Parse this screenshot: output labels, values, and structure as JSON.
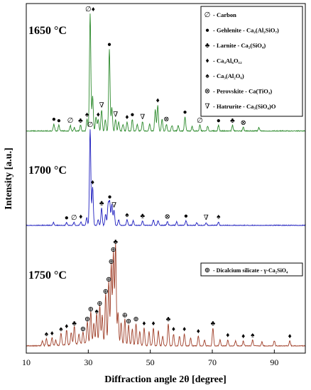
{
  "chart_data": {
    "type": "line",
    "xlabel": "Diffraction angle 2θ [degree]",
    "ylabel": "Intensity [a.u.]",
    "xlim": [
      10,
      100
    ],
    "x_ticks": [
      10,
      30,
      50,
      70,
      90
    ],
    "grid": false,
    "series": [
      {
        "name": "1650 °C",
        "color": "#2e8b2e",
        "baseline": 0,
        "peaks": [
          {
            "x": 18.9,
            "h": 0.06
          },
          {
            "x": 20.5,
            "h": 0.05
          },
          {
            "x": 24.2,
            "h": 0.05
          },
          {
            "x": 25.5,
            "h": 0.03
          },
          {
            "x": 27.5,
            "h": 0.05
          },
          {
            "x": 29.6,
            "h": 0.1
          },
          {
            "x": 30.6,
            "h": 1.0
          },
          {
            "x": 31.4,
            "h": 0.3
          },
          {
            "x": 32.5,
            "h": 0.12
          },
          {
            "x": 33.2,
            "h": 0.1
          },
          {
            "x": 34.3,
            "h": 0.18
          },
          {
            "x": 35.5,
            "h": 0.1
          },
          {
            "x": 36.8,
            "h": 0.7
          },
          {
            "x": 37.6,
            "h": 0.2
          },
          {
            "x": 38.8,
            "h": 0.1
          },
          {
            "x": 39.8,
            "h": 0.08
          },
          {
            "x": 41.2,
            "h": 0.06
          },
          {
            "x": 42.5,
            "h": 0.08
          },
          {
            "x": 44.2,
            "h": 0.1
          },
          {
            "x": 45.8,
            "h": 0.06
          },
          {
            "x": 47.5,
            "h": 0.08
          },
          {
            "x": 49.8,
            "h": 0.06
          },
          {
            "x": 51.6,
            "h": 0.18
          },
          {
            "x": 52.4,
            "h": 0.22
          },
          {
            "x": 53.8,
            "h": 0.1
          },
          {
            "x": 55.2,
            "h": 0.06
          },
          {
            "x": 57.0,
            "h": 0.05
          },
          {
            "x": 59.0,
            "h": 0.05
          },
          {
            "x": 61.2,
            "h": 0.12
          },
          {
            "x": 63.5,
            "h": 0.04
          },
          {
            "x": 66.0,
            "h": 0.05
          },
          {
            "x": 68.5,
            "h": 0.04
          },
          {
            "x": 72.0,
            "h": 0.05
          },
          {
            "x": 76.5,
            "h": 0.05
          },
          {
            "x": 80.0,
            "h": 0.03
          },
          {
            "x": 85.0,
            "h": 0.03
          }
        ]
      },
      {
        "name": "1700 °C",
        "color": "#1f1fbf",
        "baseline": 0,
        "peaks": [
          {
            "x": 18.8,
            "h": 0.03
          },
          {
            "x": 23.0,
            "h": 0.03
          },
          {
            "x": 25.4,
            "h": 0.03
          },
          {
            "x": 27.6,
            "h": 0.04
          },
          {
            "x": 29.5,
            "h": 0.08
          },
          {
            "x": 30.6,
            "h": 1.0
          },
          {
            "x": 31.4,
            "h": 0.4
          },
          {
            "x": 33.2,
            "h": 0.06
          },
          {
            "x": 34.3,
            "h": 0.18
          },
          {
            "x": 35.6,
            "h": 0.12
          },
          {
            "x": 36.4,
            "h": 0.22
          },
          {
            "x": 36.9,
            "h": 0.25
          },
          {
            "x": 37.6,
            "h": 0.22
          },
          {
            "x": 38.3,
            "h": 0.16
          },
          {
            "x": 39.8,
            "h": 0.06
          },
          {
            "x": 42.5,
            "h": 0.06
          },
          {
            "x": 44.5,
            "h": 0.05
          },
          {
            "x": 47.5,
            "h": 0.05
          },
          {
            "x": 51.0,
            "h": 0.06
          },
          {
            "x": 52.5,
            "h": 0.05
          },
          {
            "x": 55.5,
            "h": 0.04
          },
          {
            "x": 58.5,
            "h": 0.04
          },
          {
            "x": 61.5,
            "h": 0.05
          },
          {
            "x": 65.0,
            "h": 0.03
          },
          {
            "x": 68.0,
            "h": 0.03
          },
          {
            "x": 72.0,
            "h": 0.04
          }
        ]
      },
      {
        "name": "1750 °C",
        "color": "#a0402a",
        "baseline": 0,
        "peaks": [
          {
            "x": 15.2,
            "h": 0.05
          },
          {
            "x": 16.5,
            "h": 0.07
          },
          {
            "x": 18.3,
            "h": 0.08
          },
          {
            "x": 19.5,
            "h": 0.05
          },
          {
            "x": 21.2,
            "h": 0.12
          },
          {
            "x": 23.0,
            "h": 0.15
          },
          {
            "x": 24.5,
            "h": 0.12
          },
          {
            "x": 25.5,
            "h": 0.18
          },
          {
            "x": 27.0,
            "h": 0.1
          },
          {
            "x": 28.3,
            "h": 0.12
          },
          {
            "x": 29.7,
            "h": 0.22
          },
          {
            "x": 30.8,
            "h": 0.32
          },
          {
            "x": 31.8,
            "h": 0.2
          },
          {
            "x": 32.7,
            "h": 0.3
          },
          {
            "x": 33.7,
            "h": 0.38
          },
          {
            "x": 34.5,
            "h": 0.28
          },
          {
            "x": 35.6,
            "h": 0.5
          },
          {
            "x": 36.6,
            "h": 0.62
          },
          {
            "x": 37.4,
            "h": 0.8
          },
          {
            "x": 38.1,
            "h": 0.92
          },
          {
            "x": 38.8,
            "h": 1.0
          },
          {
            "x": 39.6,
            "h": 0.32
          },
          {
            "x": 40.6,
            "h": 0.22
          },
          {
            "x": 41.8,
            "h": 0.26
          },
          {
            "x": 43.0,
            "h": 0.2
          },
          {
            "x": 44.2,
            "h": 0.16
          },
          {
            "x": 45.4,
            "h": 0.22
          },
          {
            "x": 46.6,
            "h": 0.14
          },
          {
            "x": 48.0,
            "h": 0.18
          },
          {
            "x": 49.6,
            "h": 0.14
          },
          {
            "x": 51.0,
            "h": 0.18
          },
          {
            "x": 52.6,
            "h": 0.15
          },
          {
            "x": 54.0,
            "h": 0.1
          },
          {
            "x": 55.8,
            "h": 0.22
          },
          {
            "x": 57.5,
            "h": 0.12
          },
          {
            "x": 59.4,
            "h": 0.1
          },
          {
            "x": 61.0,
            "h": 0.12
          },
          {
            "x": 63.0,
            "h": 0.08
          },
          {
            "x": 65.5,
            "h": 0.1
          },
          {
            "x": 67.5,
            "h": 0.06
          },
          {
            "x": 70.2,
            "h": 0.18
          },
          {
            "x": 72.5,
            "h": 0.06
          },
          {
            "x": 75.0,
            "h": 0.06
          },
          {
            "x": 77.5,
            "h": 0.05
          },
          {
            "x": 80.0,
            "h": 0.05
          },
          {
            "x": 83.0,
            "h": 0.06
          },
          {
            "x": 86.0,
            "h": 0.04
          },
          {
            "x": 90.0,
            "h": 0.05
          },
          {
            "x": 95.0,
            "h": 0.05
          }
        ]
      }
    ],
    "legend_top": {
      "placement": "top-right",
      "entries": [
        {
          "symbol": "∅",
          "label": "- Carbon"
        },
        {
          "symbol": "●",
          "label": "- Gehlenite - Ca₂(Al₂SiO₇)"
        },
        {
          "symbol": "♣",
          "label": "- Larnite - Ca₂(SiO₄)"
        },
        {
          "symbol": "♦",
          "label": "- Ca₃Al₆O₁₂"
        },
        {
          "symbol": "♠",
          "label": "- Ca₃(Al₂O₆)"
        },
        {
          "symbol": "⊗",
          "label": "- Perovskite - Ca(TiO₃)"
        },
        {
          "symbol": "∇",
          "label": "- Hatrurite - Ca₃(SiO₄)O"
        }
      ]
    },
    "legend_bottom": {
      "placement": "right",
      "entries": [
        {
          "symbol": "⊕",
          "label": "- Dicalcium silicate - γ-Ca₂SiO₄"
        }
      ]
    },
    "markers": [
      {
        "panel": 0,
        "x": 30.6,
        "symbol": "∅♦",
        "h": 1.0
      },
      {
        "panel": 0,
        "x": 36.8,
        "symbol": "●",
        "h": 0.7
      },
      {
        "panel": 0,
        "x": 34.3,
        "symbol": "∇",
        "h": 0.18
      },
      {
        "panel": 0,
        "x": 18.9,
        "symbol": "●",
        "h": 0.06
      },
      {
        "panel": 0,
        "x": 20.5,
        "symbol": "●",
        "h": 0.05
      },
      {
        "panel": 0,
        "x": 24.2,
        "symbol": "∅",
        "h": 0.05
      },
      {
        "panel": 0,
        "x": 27.5,
        "symbol": "♣",
        "h": 0.05
      },
      {
        "panel": 0,
        "x": 29.6,
        "symbol": "♠",
        "h": 0.1
      },
      {
        "panel": 0,
        "x": 33.2,
        "symbol": "♦",
        "h": 0.1
      },
      {
        "panel": 0,
        "x": 38.8,
        "symbol": "∇",
        "h": 0.1
      },
      {
        "panel": 0,
        "x": 42.5,
        "symbol": "♦",
        "h": 0.08
      },
      {
        "panel": 0,
        "x": 44.2,
        "symbol": "●",
        "h": 0.1
      },
      {
        "panel": 0,
        "x": 47.5,
        "symbol": "∇",
        "h": 0.08
      },
      {
        "panel": 0,
        "x": 52.4,
        "symbol": "♦",
        "h": 0.22
      },
      {
        "panel": 0,
        "x": 55.2,
        "symbol": "⊗",
        "h": 0.06
      },
      {
        "panel": 0,
        "x": 61.2,
        "symbol": "●",
        "h": 0.12
      },
      {
        "panel": 0,
        "x": 66.0,
        "symbol": "∅",
        "h": 0.05
      },
      {
        "panel": 0,
        "x": 72.0,
        "symbol": "●",
        "h": 0.05
      },
      {
        "panel": 0,
        "x": 76.5,
        "symbol": "♣",
        "h": 0.05
      },
      {
        "panel": 0,
        "x": 80.0,
        "symbol": "⊗",
        "h": 0.03
      },
      {
        "panel": 1,
        "x": 30.6,
        "symbol": "∅",
        "h": 1.0
      },
      {
        "panel": 1,
        "x": 31.4,
        "symbol": "♦",
        "h": 0.4
      },
      {
        "panel": 1,
        "x": 36.9,
        "symbol": "●",
        "h": 0.25
      },
      {
        "panel": 1,
        "x": 34.3,
        "symbol": "♣",
        "h": 0.18
      },
      {
        "panel": 1,
        "x": 38.3,
        "symbol": "∇",
        "h": 0.16
      },
      {
        "panel": 1,
        "x": 23.0,
        "symbol": "●",
        "h": 0.03
      },
      {
        "panel": 1,
        "x": 25.4,
        "symbol": "∅",
        "h": 0.03
      },
      {
        "panel": 1,
        "x": 27.6,
        "symbol": "♦",
        "h": 0.04
      },
      {
        "panel": 1,
        "x": 42.5,
        "symbol": "♠",
        "h": 0.06
      },
      {
        "panel": 1,
        "x": 47.5,
        "symbol": "♣",
        "h": 0.05
      },
      {
        "panel": 1,
        "x": 55.5,
        "symbol": "⊗",
        "h": 0.04
      },
      {
        "panel": 1,
        "x": 61.5,
        "symbol": "●",
        "h": 0.05
      },
      {
        "panel": 1,
        "x": 68.0,
        "symbol": "∇",
        "h": 0.03
      },
      {
        "panel": 1,
        "x": 72.0,
        "symbol": "♠",
        "h": 0.04
      },
      {
        "panel": 2,
        "x": 38.8,
        "symbol": "♣",
        "h": 1.0
      },
      {
        "panel": 2,
        "x": 38.1,
        "symbol": "⊕",
        "h": 0.92
      },
      {
        "panel": 2,
        "x": 37.4,
        "symbol": "⊕",
        "h": 0.8
      },
      {
        "panel": 2,
        "x": 36.6,
        "symbol": "⊕",
        "h": 0.62
      },
      {
        "panel": 2,
        "x": 35.6,
        "symbol": "⊕",
        "h": 0.5
      },
      {
        "panel": 2,
        "x": 33.7,
        "symbol": "⊕",
        "h": 0.38
      },
      {
        "panel": 2,
        "x": 30.8,
        "symbol": "⊕",
        "h": 0.32
      },
      {
        "panel": 2,
        "x": 32.7,
        "symbol": "♠",
        "h": 0.3
      },
      {
        "panel": 2,
        "x": 29.7,
        "symbol": "⊕",
        "h": 0.22
      },
      {
        "panel": 2,
        "x": 41.8,
        "symbol": "⊕",
        "h": 0.26
      },
      {
        "panel": 2,
        "x": 43.0,
        "symbol": "⊕",
        "h": 0.2
      },
      {
        "panel": 2,
        "x": 45.4,
        "symbol": "⊕",
        "h": 0.22
      },
      {
        "panel": 2,
        "x": 48.0,
        "symbol": "♦",
        "h": 0.18
      },
      {
        "panel": 2,
        "x": 51.0,
        "symbol": "♦",
        "h": 0.18
      },
      {
        "panel": 2,
        "x": 55.8,
        "symbol": "♣",
        "h": 0.22
      },
      {
        "panel": 2,
        "x": 57.5,
        "symbol": "♦",
        "h": 0.12
      },
      {
        "panel": 2,
        "x": 61.0,
        "symbol": "♦",
        "h": 0.12
      },
      {
        "panel": 2,
        "x": 65.5,
        "symbol": "♦",
        "h": 0.1
      },
      {
        "panel": 2,
        "x": 70.2,
        "symbol": "♣",
        "h": 0.18
      },
      {
        "panel": 2,
        "x": 75.0,
        "symbol": "♦",
        "h": 0.06
      },
      {
        "panel": 2,
        "x": 80.0,
        "symbol": "♦",
        "h": 0.05
      },
      {
        "panel": 2,
        "x": 83.0,
        "symbol": "♠",
        "h": 0.06
      },
      {
        "panel": 2,
        "x": 95.0,
        "symbol": "♦",
        "h": 0.05
      },
      {
        "panel": 2,
        "x": 25.5,
        "symbol": "♣",
        "h": 0.18
      },
      {
        "panel": 2,
        "x": 21.2,
        "symbol": "♠",
        "h": 0.12
      },
      {
        "panel": 2,
        "x": 18.3,
        "symbol": "♦",
        "h": 0.08
      },
      {
        "panel": 2,
        "x": 16.5,
        "symbol": "♠",
        "h": 0.07
      },
      {
        "panel": 2,
        "x": 28.3,
        "symbol": "⊕",
        "h": 0.12
      },
      {
        "panel": 2,
        "x": 23.0,
        "symbol": "♦",
        "h": 0.15
      }
    ]
  }
}
